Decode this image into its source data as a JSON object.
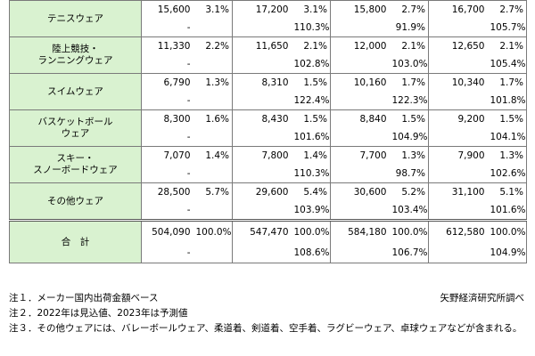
{
  "table": {
    "rows": [
      {
        "category": [
          "テニスウェア"
        ],
        "top": [
          "15,600",
          "3.1%",
          "17,200",
          "3.1%",
          "15,800",
          "2.7%",
          "16,700",
          "2.7%"
        ],
        "bottom": [
          "-",
          "",
          "",
          "110.3%",
          "",
          "91.9%",
          "",
          "105.7%"
        ]
      },
      {
        "category": [
          "陸上競技・",
          "ランニングウェア"
        ],
        "top": [
          "11,330",
          "2.2%",
          "11,650",
          "2.1%",
          "12,000",
          "2.1%",
          "12,650",
          "2.1%"
        ],
        "bottom": [
          "-",
          "",
          "",
          "102.8%",
          "",
          "103.0%",
          "",
          "105.4%"
        ]
      },
      {
        "category": [
          "スイムウェア"
        ],
        "top": [
          "6,790",
          "1.3%",
          "8,310",
          "1.5%",
          "10,160",
          "1.7%",
          "10,340",
          "1.7%"
        ],
        "bottom": [
          "-",
          "",
          "",
          "122.4%",
          "",
          "122.3%",
          "",
          "101.8%"
        ]
      },
      {
        "category": [
          "バスケットボール",
          "ウェア"
        ],
        "top": [
          "8,300",
          "1.6%",
          "8,430",
          "1.5%",
          "8,840",
          "1.5%",
          "9,200",
          "1.5%"
        ],
        "bottom": [
          "-",
          "",
          "",
          "101.6%",
          "",
          "104.9%",
          "",
          "104.1%"
        ]
      },
      {
        "category": [
          "スキー・",
          "スノーボードウェア"
        ],
        "top": [
          "7,070",
          "1.4%",
          "7,800",
          "1.4%",
          "7,700",
          "1.3%",
          "7,900",
          "1.3%"
        ],
        "bottom": [
          "-",
          "",
          "",
          "110.3%",
          "",
          "98.7%",
          "",
          "102.6%"
        ]
      },
      {
        "category": [
          "その他ウェア"
        ],
        "top": [
          "28,500",
          "5.7%",
          "29,600",
          "5.4%",
          "30,600",
          "5.2%",
          "31,100",
          "5.1%"
        ],
        "bottom": [
          "-",
          "",
          "",
          "103.9%",
          "",
          "103.4%",
          "",
          "101.6%"
        ]
      },
      {
        "category": [
          "合　計"
        ],
        "total": true,
        "top": [
          "504,090",
          "100.0%",
          "547,470",
          "100.0%",
          "584,180",
          "100.0%",
          "612,580",
          "100.0%"
        ],
        "bottom": [
          "-",
          "",
          "",
          "108.6%",
          "",
          "106.7%",
          "",
          "104.9%"
        ]
      }
    ]
  },
  "notes": [
    "注１．メーカー国内出荷金額ベース",
    "注２．2022年は見込値、2023年は予測値",
    "注３．その他ウェアには、バレーボールウェア、柔道着、剣道着、空手着、ラグビーウェア、卓球ウェアなどが含まれる。"
  ],
  "source": "矢野経済研究所調べ",
  "colors": {
    "category_bg": "#d9f2d0",
    "border": "#7a7a7a"
  }
}
